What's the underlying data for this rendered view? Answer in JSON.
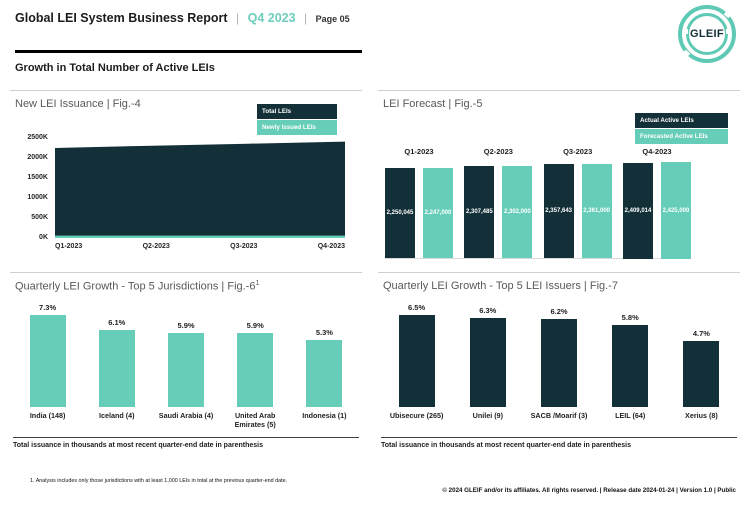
{
  "header": {
    "title": "Global LEI System Business Report",
    "separator": "|",
    "quarter": "Q4 2023",
    "page_label": "Page 05",
    "logo_text": "GLEIF"
  },
  "section_title": "Growth in Total Number of Active LEIs",
  "colors": {
    "dark": "#132F37",
    "teal": "#66CDB8",
    "header_quarter_teal": "#6FCEBD",
    "title_gray": "#595959"
  },
  "chart_data": [
    {
      "id": "fig4",
      "type": "area",
      "title": "New LEI Issuance | Fig.-4",
      "categories": [
        "Q1-2023",
        "Q2-2023",
        "Q3-2023",
        "Q4-2023"
      ],
      "series": [
        {
          "name": "Total LEIs",
          "color_key": "dark",
          "values": [
            2250045,
            2307485,
            2357643,
            2409014
          ]
        },
        {
          "name": "Newly Issued LEIs",
          "color_key": "teal",
          "values": [
            60000,
            60000,
            60000,
            60000
          ]
        }
      ],
      "ylim": [
        0,
        2500000
      ],
      "ylabel_ticks": [
        "2500K",
        "2000K",
        "1500K",
        "1000K",
        "500K",
        "0K"
      ],
      "legend_position": "top-right",
      "grid": false
    },
    {
      "id": "fig5",
      "type": "bar",
      "title": "LEI Forecast | Fig.-5",
      "categories": [
        "Q1-2023",
        "Q2-2023",
        "Q3-2023",
        "Q4-2023"
      ],
      "series": [
        {
          "name": "Actual Active LEIs",
          "color_key": "dark",
          "values": [
            2250045,
            2307485,
            2357643,
            2409014
          ],
          "labels": [
            "2,250,045",
            "2,307,485",
            "2,357,643",
            "2,409,014"
          ]
        },
        {
          "name": "Forecasted Active LEIs",
          "color_key": "teal",
          "values": [
            2247000,
            2302000,
            2361000,
            2425000
          ],
          "labels": [
            "2,247,000",
            "2,302,000",
            "2,361,000",
            "2,425,000"
          ]
        }
      ],
      "legend_position": "top-right",
      "grid": false
    },
    {
      "id": "fig6",
      "type": "bar",
      "title": "Quarterly LEI Growth - Top 5 Jurisdictions | Fig.-6",
      "title_superscript": "1",
      "categories": [
        "India (148)",
        "Iceland (4)",
        "Saudi Arabia (4)",
        "United Arab Emirates (5)",
        "Indonesia (1)"
      ],
      "values": [
        7.3,
        6.1,
        5.9,
        5.9,
        5.3
      ],
      "value_labels": [
        "7.3%",
        "6.1%",
        "5.9%",
        "5.9%",
        "5.3%"
      ],
      "bar_color_key": "teal",
      "footnote": "Total issuance in thousands at most recent quarter-end date in parenthesis",
      "grid": false
    },
    {
      "id": "fig7",
      "type": "bar",
      "title": "Quarterly LEI Growth - Top 5 LEI Issuers | Fig.-7",
      "categories": [
        "Ubisecure (265)",
        "Unilei (9)",
        "SACB /Moarif (3)",
        "LEIL (64)",
        "Xerius (8)"
      ],
      "values": [
        6.5,
        6.3,
        6.2,
        5.8,
        4.7
      ],
      "value_labels": [
        "6.5%",
        "6.3%",
        "6.2%",
        "5.8%",
        "4.7%"
      ],
      "bar_color_key": "dark",
      "footnote": "Total issuance in thousands at most recent quarter-end date in parenthesis",
      "grid": false
    }
  ],
  "footer": {
    "footnote": "1. Analysis includes only those jurisdictions with at least 1,000 LEIs in total at the previous quarter-end date.",
    "copyright": "© 2024 GLEIF and/or its affiliates. All rights reserved. | Release date 2024-01-24 | Version 1.0 | Public"
  }
}
